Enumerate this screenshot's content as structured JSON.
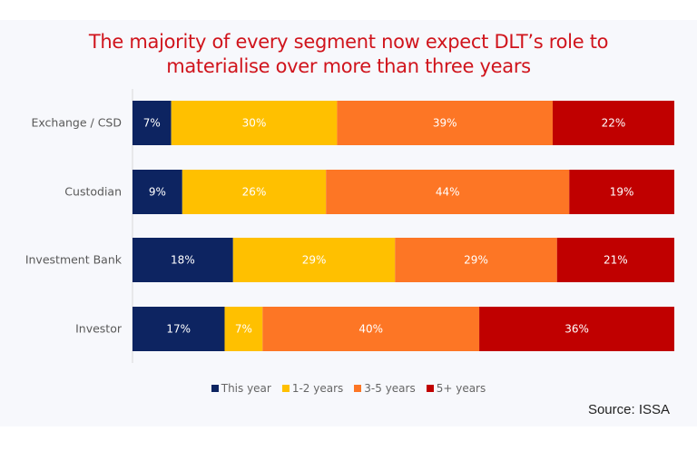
{
  "chart_data": {
    "type": "bar",
    "orientation": "horizontal",
    "stacked": true,
    "title": "The majority of every segment now expect DLT’s role to materialise over more than three years",
    "title_lines": [
      "The majority of every segment now expect DLT’s role to",
      "materialise over more than three years"
    ],
    "categories": [
      "Exchange / CSD",
      "Custodian",
      "Investment Bank",
      "Investor"
    ],
    "series": [
      {
        "name": "This year",
        "color": "#0d2461",
        "values": [
          7,
          9,
          18,
          17
        ]
      },
      {
        "name": "1-2 years",
        "color": "#ffc000",
        "values": [
          30,
          26,
          29,
          7
        ]
      },
      {
        "name": "3-5 years",
        "color": "#fd7625",
        "values": [
          39,
          44,
          29,
          40
        ]
      },
      {
        "name": "5+ years",
        "color": "#c00000",
        "values": [
          22,
          19,
          21,
          36
        ]
      }
    ],
    "value_format": "{v}%",
    "legend_placement": "bottom",
    "grid": false,
    "source": "Source: ISSA"
  }
}
